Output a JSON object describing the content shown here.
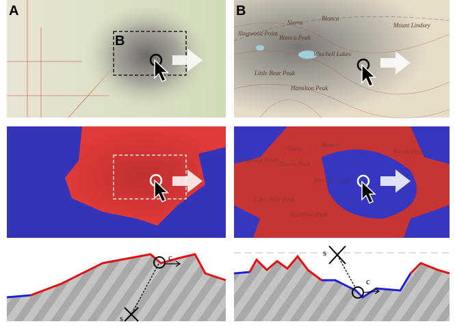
{
  "panels": [
    {
      "label": "A",
      "inset_label": "B"
    },
    {
      "label": "B"
    }
  ],
  "map_labels": [
    "Sierra",
    "Blanca",
    "Mount Lindsey",
    "Blanca Peak",
    "Little Bear Peak",
    "Hamilton Peak",
    "Winchell Lakes",
    "llingwood Point"
  ],
  "profiles": [
    {
      "c_label": "c",
      "s_label": "s"
    },
    {
      "c_label": "c",
      "s_label": "s"
    }
  ]
}
